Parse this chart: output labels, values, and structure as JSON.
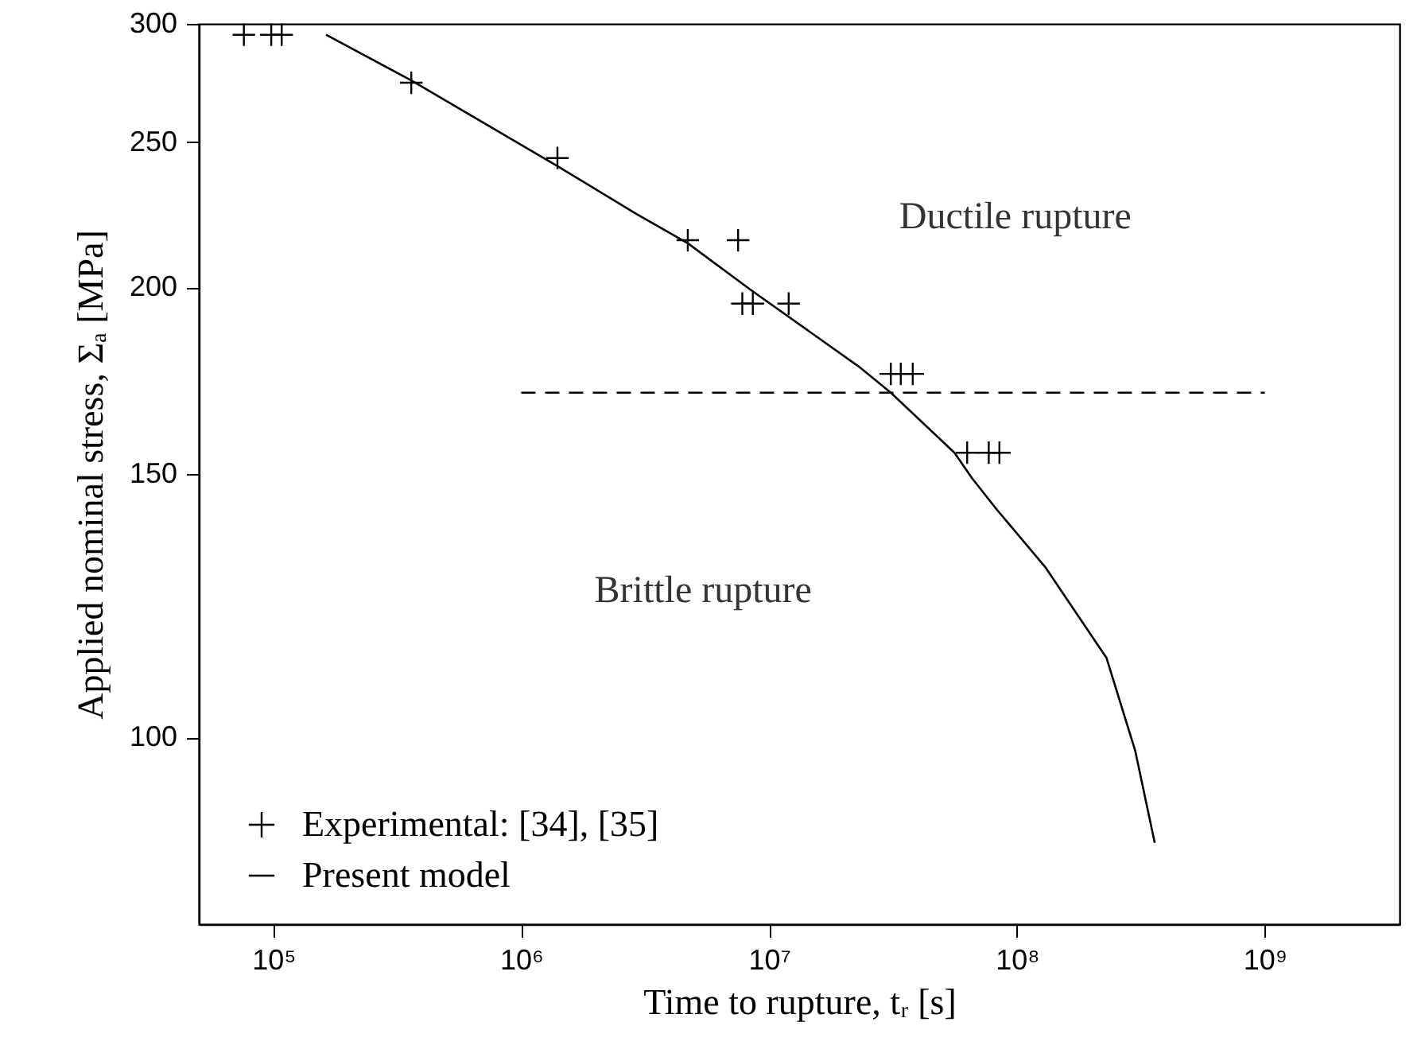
{
  "chart_data": {
    "type": "scatter",
    "xlabel": "Time to rupture, tᵣ [s]",
    "ylabel": "Applied nominal stress, Σₐ [MPa]",
    "log": "xy",
    "xlim": [
      50000,
      3500000000
    ],
    "xticks": [
      {
        "value": 100000,
        "label": "10⁵"
      },
      {
        "value": 1000000,
        "label": "10⁶"
      },
      {
        "value": 10000000,
        "label": "10⁷"
      },
      {
        "value": 100000000,
        "label": "10⁸"
      },
      {
        "value": 1000000000,
        "label": "10⁹"
      }
    ],
    "ylim": [
      75,
      300
    ],
    "yticks": [
      100,
      150,
      200,
      250,
      300
    ],
    "grid": false,
    "legend": "bottom left",
    "annotations": [
      "Ductile rupture",
      "Brittle rupture"
    ],
    "series": [
      {
        "name": "Experimental: [34], [35]",
        "marker": "cross",
        "color": "#000000",
        "x": [
          76000,
          98000,
          108000,
          360000,
          1400000,
          4700000,
          7500000,
          7800000,
          8600000,
          12000000,
          31000000,
          34000000,
          38000000,
          63000000,
          77000000,
          85000000
        ],
        "values": [
          295,
          295,
          295,
          274,
          244,
          215,
          215,
          195,
          195,
          195,
          175,
          175,
          175,
          155,
          155,
          155
        ]
      },
      {
        "name": "Present model",
        "type": "line",
        "color": "#000000",
        "x": [
          163000,
          360000,
          1400000,
          2900000,
          4700000,
          8500000,
          23000000,
          31000000,
          56000000,
          66000000,
          83000000,
          130000000,
          230000000,
          300000000,
          360000000
        ],
        "values": [
          295,
          275,
          241,
          224,
          214,
          199,
          177,
          170,
          155,
          149,
          142,
          130,
          113,
          98,
          85
        ]
      },
      {
        "type": "line",
        "line_style": "dashed",
        "color": "#000000",
        "x": [
          1000000,
          1000000000
        ],
        "values": [
          170,
          170
        ]
      }
    ]
  }
}
